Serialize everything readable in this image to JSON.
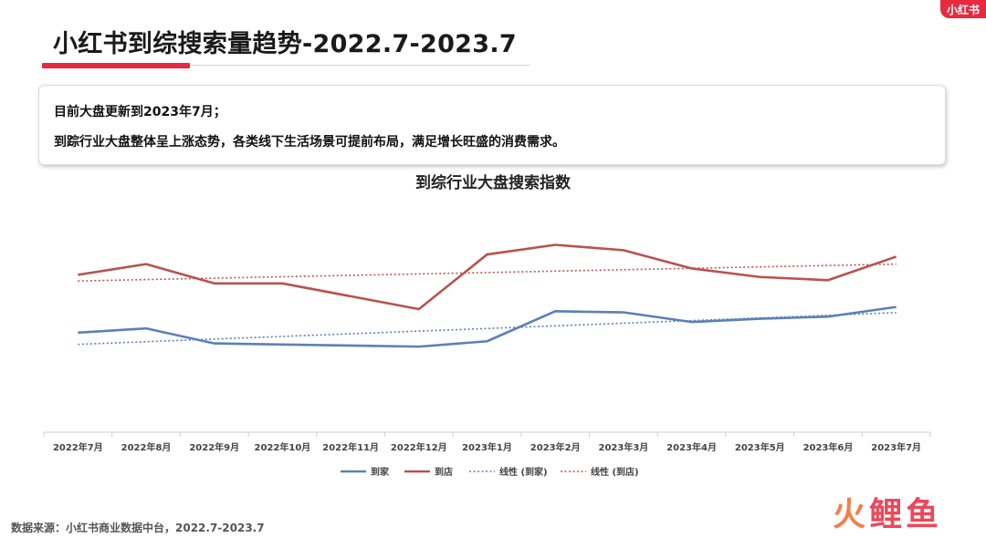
{
  "page": {
    "title": "小红书到综搜索量趋势-2022.7-2023.7",
    "brand_badge": "小红书",
    "summary_line_1": "目前大盘更新到2023年7月；",
    "summary_line_2": "到踪行业大盘整体呈上涨态势，各类线下生活场景可提前布局，满足增长旺盛的消费需求。",
    "source_note": "数据来源：小红书商业数据中台，2022.7-2023.7",
    "watermark": [
      "火",
      "鲤",
      "鱼"
    ]
  },
  "colors": {
    "accent": "#e8293f",
    "series_home": "#5b80b9",
    "series_store": "#b9524e"
  },
  "chart_data": {
    "type": "line",
    "title": "到综行业大盘搜索指数",
    "categories": [
      "2022年7月",
      "2022年8月",
      "2022年9月",
      "2022年10月",
      "2022年11月",
      "2022年12月",
      "2023年1月",
      "2023年2月",
      "2023年3月",
      "2023年4月",
      "2023年5月",
      "2023年6月",
      "2023年7月"
    ],
    "y_range": [
      0,
      100
    ],
    "series": [
      {
        "name": "到家",
        "color": "#5b80b9",
        "values": [
          49,
          51,
          44,
          43.5,
          43,
          42.5,
          45,
          59,
          58.5,
          54,
          55.5,
          56.5,
          61
        ]
      },
      {
        "name": "到店",
        "color": "#b9524e",
        "values": [
          76,
          81,
          72,
          72,
          66,
          60,
          85.5,
          90,
          87.5,
          79,
          75,
          73.5,
          84.5
        ]
      },
      {
        "name": "线性 (到家)",
        "color": "#5b80b9",
        "dashed": true,
        "trend_of": 0
      },
      {
        "name": "线性 (到店)",
        "color": "#c25450",
        "dashed": true,
        "trend_of": 1
      }
    ],
    "grid": false,
    "legend_position": "bottom"
  }
}
